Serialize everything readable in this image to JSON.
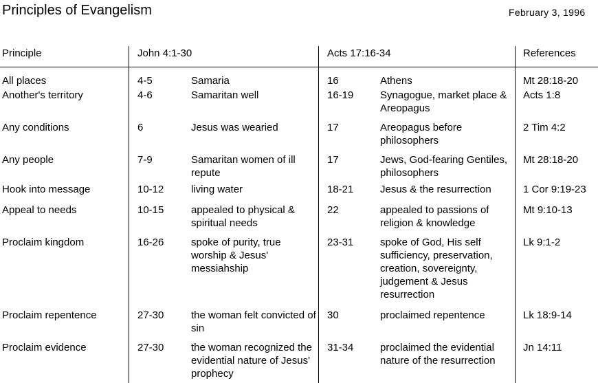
{
  "header": {
    "title": "Principles of Evangelism",
    "date": "February 3, 1996"
  },
  "table": {
    "columns": {
      "principle": "Principle",
      "john": "John 4:1-30",
      "acts": "Acts 17:16-34",
      "references": "References"
    },
    "rows": [
      {
        "principle": "All places",
        "john_verses": "4-5",
        "john_text": "Samaria",
        "acts_verses": "16",
        "acts_text": "Athens",
        "references": "Mt 28:18-20"
      },
      {
        "principle": "Another's territory",
        "john_verses": "4-6",
        "john_text": "Samaritan well",
        "acts_verses": "16-19",
        "acts_text": "Synagogue, market place & Areopagus",
        "references": "Acts 1:8"
      },
      {
        "principle": "Any conditions",
        "john_verses": "6",
        "john_text": "Jesus was wearied",
        "acts_verses": "17",
        "acts_text": "Areopagus before philosophers",
        "references": "2 Tim 4:2"
      },
      {
        "principle": "Any people",
        "john_verses": "7-9",
        "john_text": "Samaritan women of ill repute",
        "acts_verses": "17",
        "acts_text": "Jews, God-fearing Gentiles, philosophers",
        "references": "Mt 28:18-20"
      },
      {
        "principle": "Hook into message",
        "john_verses": "10-12",
        "john_text": "living water",
        "acts_verses": "18-21",
        "acts_text": "Jesus & the resurrection",
        "references": "1 Cor 9:19-23"
      },
      {
        "principle": "Appeal to needs",
        "john_verses": "10-15",
        "john_text": "appealed to physical & spiritual needs",
        "acts_verses": "22",
        "acts_text": "appealed to passions of religion & knowledge",
        "references": "Mt 9:10-13"
      },
      {
        "principle": "Proclaim kingdom",
        "john_verses": "16-26",
        "john_text": "spoke of purity, true worship & Jesus' messiahship",
        "acts_verses": "23-31",
        "acts_text": "spoke of God, His self sufficiency, preservation, creation, sovereignty, judgement & Jesus resurrection",
        "references": "Lk 9:1-2"
      },
      {
        "principle": "Proclaim repentence",
        "john_verses": "27-30",
        "john_text": "the woman felt convicted of sin",
        "acts_verses": "30",
        "acts_text": "proclaimed repentence",
        "references": "Lk 18:9-14"
      },
      {
        "principle": "Proclaim evidence",
        "john_verses": "27-30",
        "john_text": "the woman recognized the evidential nature of Jesus' prophecy",
        "acts_verses": "31-34",
        "acts_text": "proclaimed the evidential nature of the resurrection",
        "references": "Jn 14:11"
      }
    ]
  }
}
